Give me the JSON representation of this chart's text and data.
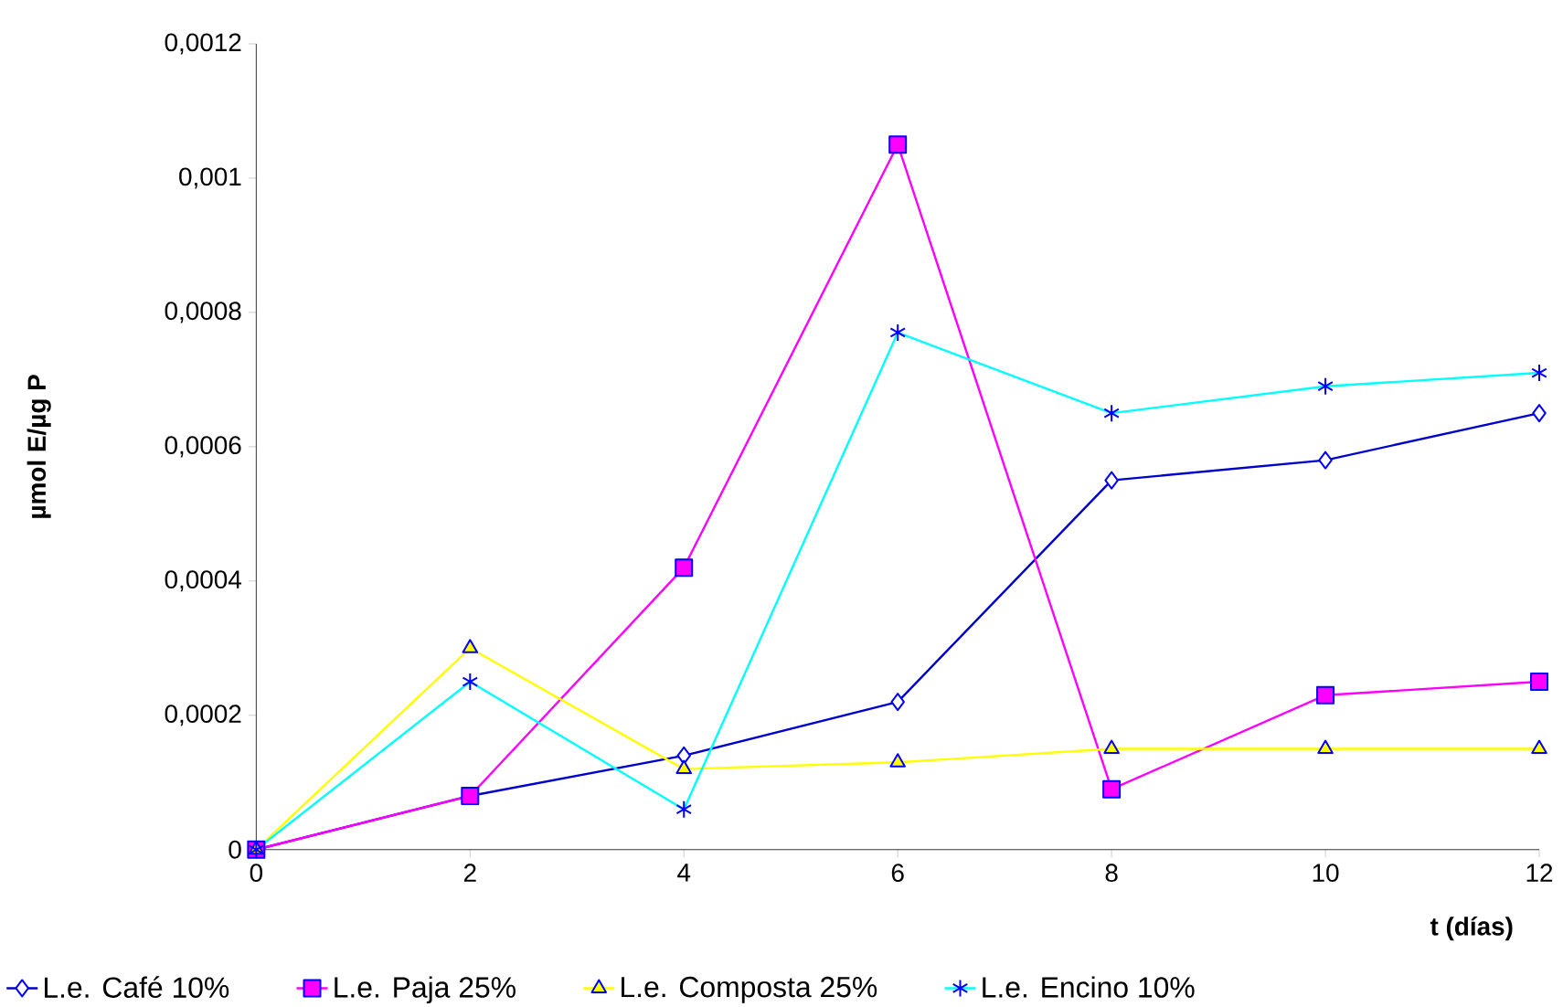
{
  "chart_data": {
    "type": "line",
    "xlabel": "t (días)",
    "ylabel": "µmol E/µg P",
    "x": [
      0,
      2,
      4,
      6,
      8,
      10,
      12
    ],
    "series": [
      {
        "name": "L.e. Café 10%",
        "color": "#0000cc",
        "marker": "diamond",
        "values": [
          0,
          8e-05,
          0.00014,
          0.00022,
          0.00055,
          0.00058,
          0.00065
        ]
      },
      {
        "name": "L.e. Paja 25%",
        "color": "#ff00ff",
        "marker": "square",
        "values": [
          0,
          8e-05,
          0.00042,
          0.00105,
          9e-05,
          0.00023,
          0.00025
        ]
      },
      {
        "name": "L.e. Composta 25%",
        "color": "#ffff00",
        "marker": "triangle",
        "values": [
          0,
          0.0003,
          0.00012,
          0.00013,
          0.00015,
          0.00015,
          0.00015
        ]
      },
      {
        "name": "L.e. Encino 10%",
        "color": "#00ffff",
        "marker": "cross",
        "values": [
          0,
          0.00025,
          6e-05,
          0.00077,
          0.00065,
          0.00069,
          0.00071
        ]
      }
    ],
    "xlim": [
      0,
      12
    ],
    "xticks": [
      0,
      2,
      4,
      6,
      8,
      10,
      12
    ],
    "ylim": [
      0,
      0.0012
    ],
    "yticks": [
      0,
      {
        "value": 0.0002,
        "label": "0,0002"
      },
      {
        "value": 0.0004,
        "label": "0,0004"
      },
      {
        "value": 0.0006,
        "label": "0,0006"
      },
      {
        "value": 0.0008,
        "label": "0,0008"
      },
      {
        "value": 0.001,
        "label": "0,001"
      },
      {
        "value": 0.0012,
        "label": "0,0012"
      }
    ],
    "grid": false,
    "legend": "bottom",
    "line_style": "solid"
  }
}
